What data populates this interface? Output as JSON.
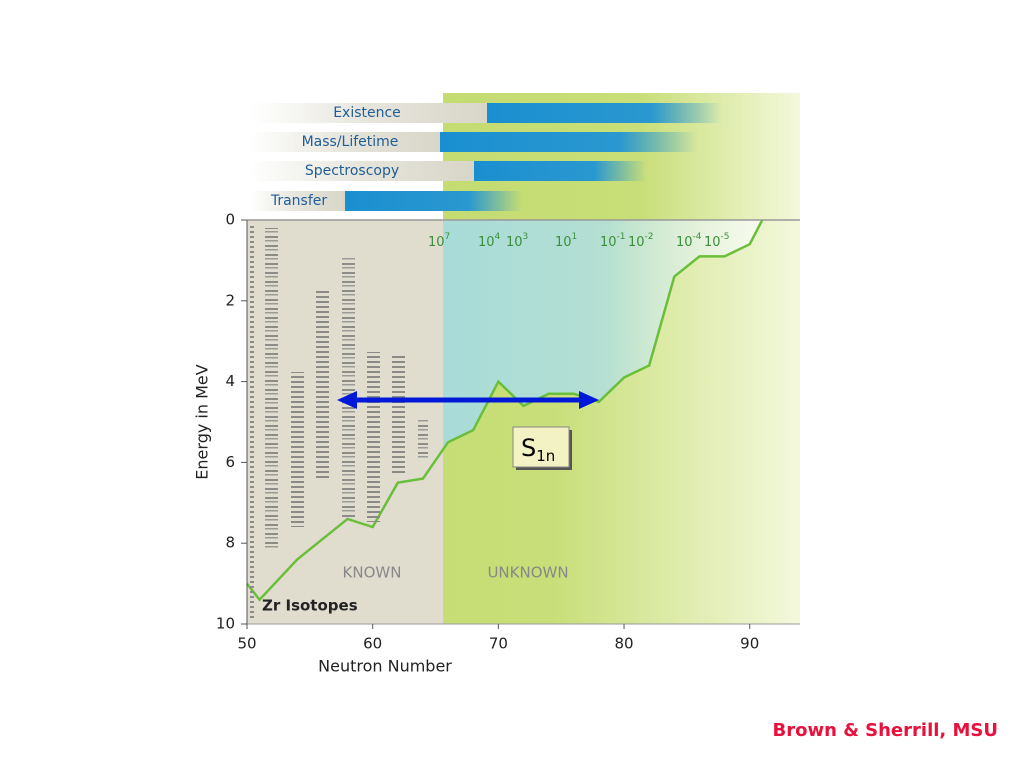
{
  "chart_data": {
    "type": "line",
    "xlabel": "Neutron Number",
    "ylabel": "Energy in MeV",
    "x": [
      50,
      51,
      54,
      58,
      60,
      62,
      64,
      66,
      68,
      70,
      72,
      74,
      76,
      78,
      80,
      82,
      84,
      86,
      88,
      90,
      91
    ],
    "values": [
      9.0,
      9.4,
      8.4,
      7.4,
      7.6,
      6.5,
      6.4,
      5.5,
      5.2,
      4.0,
      4.6,
      4.3,
      4.3,
      4.5,
      3.9,
      3.6,
      1.4,
      0.9,
      0.9,
      0.6,
      0
    ],
    "color": "#6abf3a",
    "xlim": [
      50,
      94
    ],
    "ylim": [
      10,
      0
    ],
    "xticks": [
      50,
      60,
      70,
      80,
      90
    ],
    "yticks": [
      0,
      2,
      4,
      6,
      8,
      10
    ],
    "regions": [
      "KNOWN",
      "UNKNOWN"
    ],
    "isotope_label": "Zr Isotopes",
    "arrow_label": {
      "text": "S",
      "sub": "1n"
    },
    "scale_labels": [
      {
        "base": "10",
        "exp": "7"
      },
      {
        "base": "10",
        "exp": "4"
      },
      {
        "base": "10",
        "exp": "3"
      },
      {
        "base": "10",
        "exp": "1"
      },
      {
        "base": "10",
        "exp": "-1"
      },
      {
        "base": "10",
        "exp": "-2"
      },
      {
        "base": "10",
        "exp": "-4"
      },
      {
        "base": "10",
        "exp": "-5"
      }
    ],
    "methods": [
      "Existence",
      "Mass/Lifetime",
      "Spectroscopy",
      "Transfer"
    ]
  },
  "credit": "Brown & Sherrill, MSU"
}
